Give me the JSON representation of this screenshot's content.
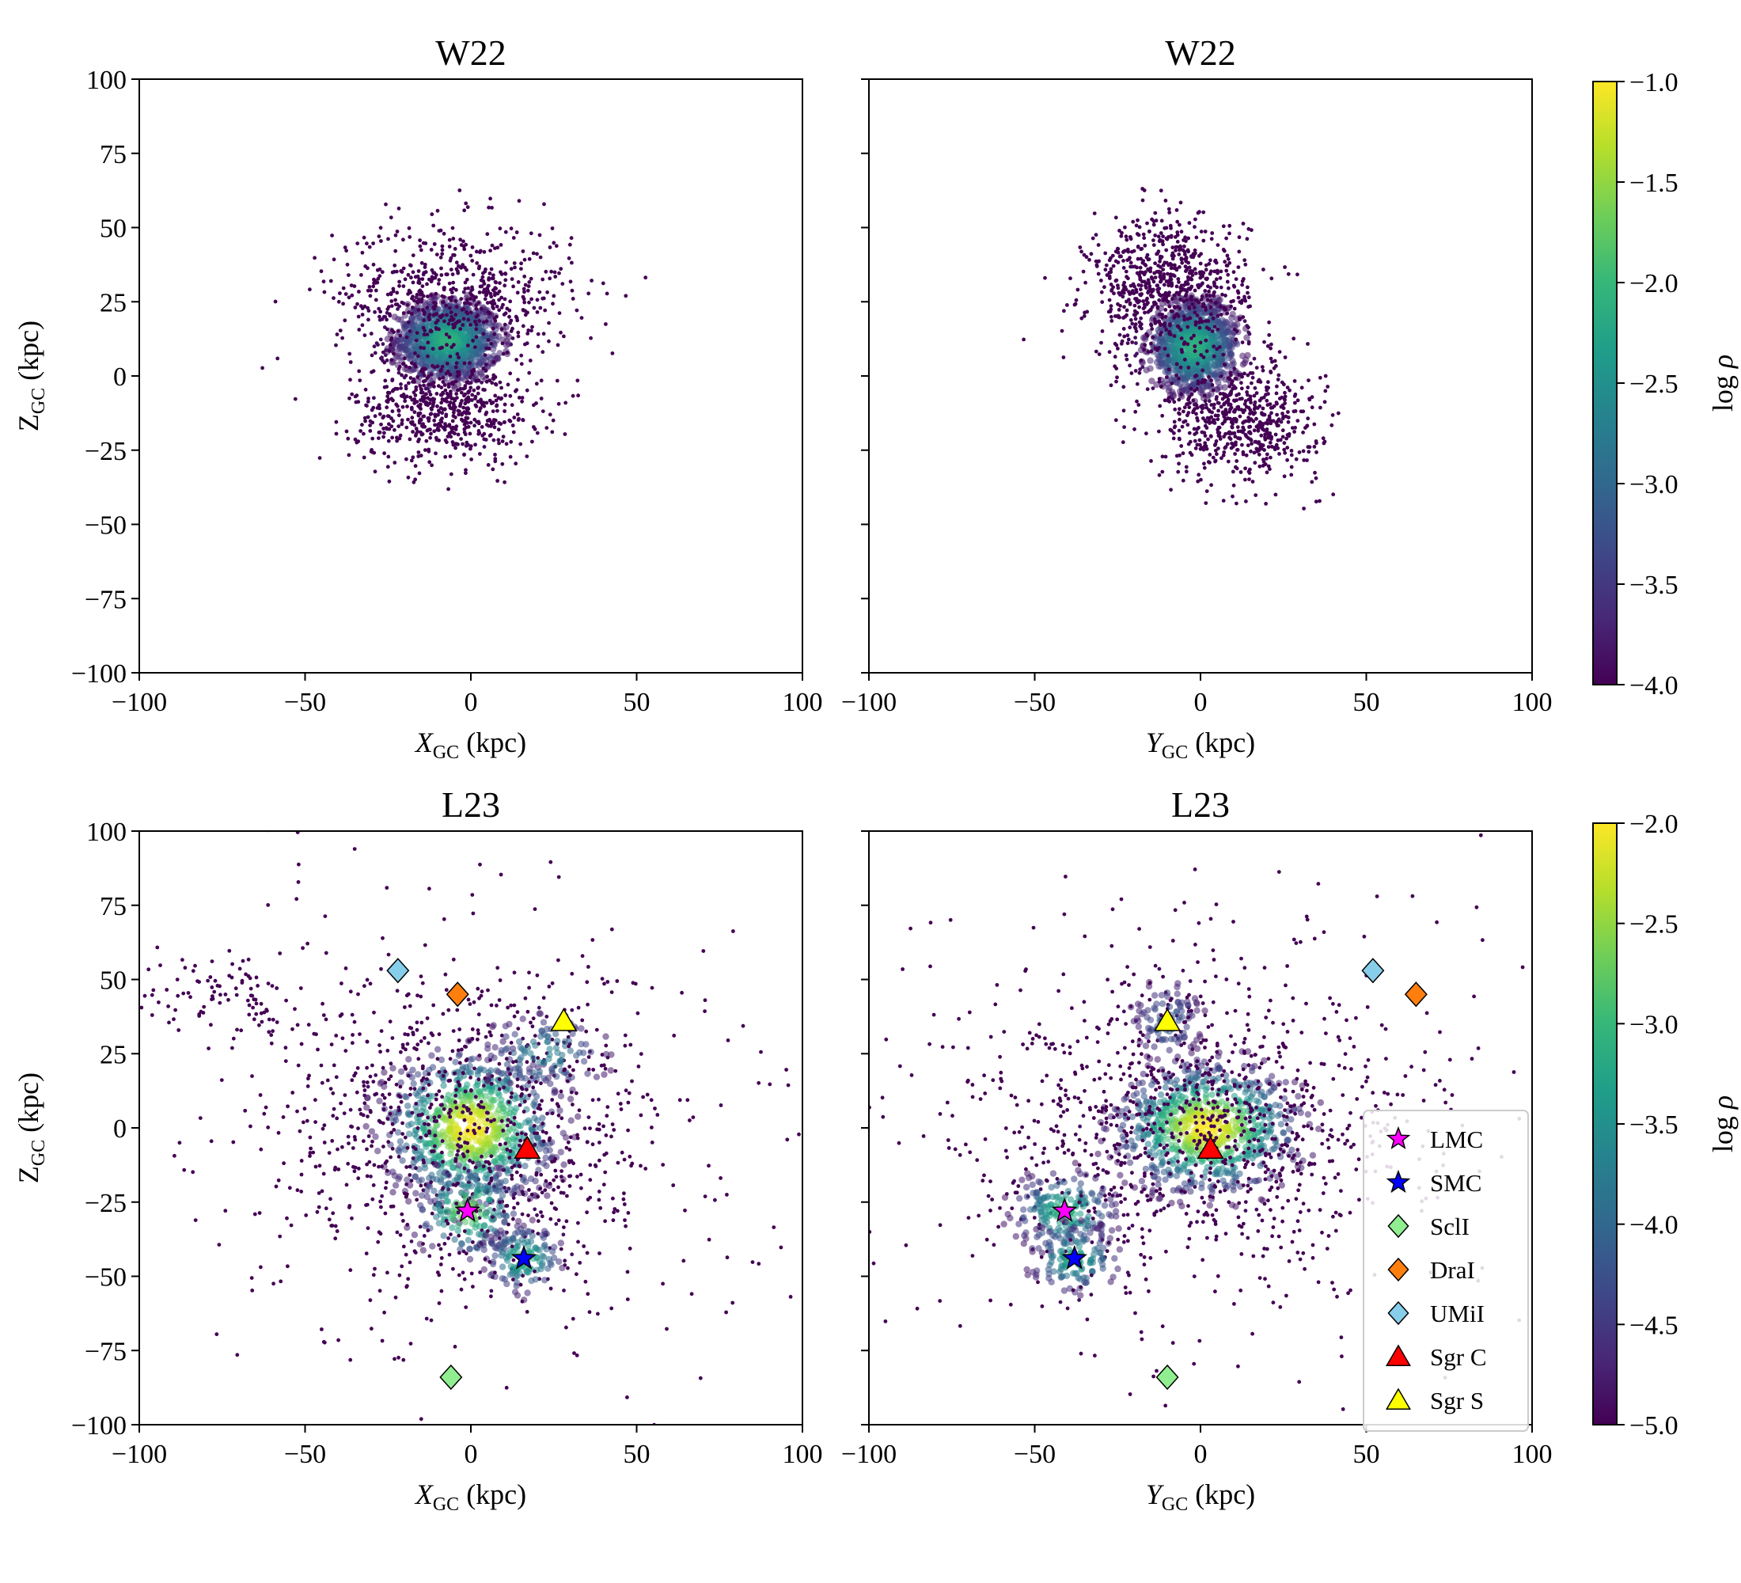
{
  "figure": {
    "colormap": [
      "#440154",
      "#482878",
      "#3e4989",
      "#31688e",
      "#26828e",
      "#1f9e89",
      "#35b779",
      "#6ece58",
      "#b5de2b",
      "#fde725"
    ]
  },
  "chart_data": [
    {
      "type": "scatter",
      "panel": "top-left",
      "title": "W22",
      "xlabel": "X",
      "xlabel_sub": "GC",
      "xlabel_unit": " (kpc)",
      "ylabel": "Z",
      "ylabel_sub": "GC",
      "ylabel_unit": " (kpc)",
      "xlim": [
        -100,
        100
      ],
      "ylim": [
        -100,
        100
      ],
      "xticks": [
        "−100",
        "−50",
        "0",
        "50",
        "100"
      ],
      "yticks": [
        "100",
        "75",
        "50",
        "25",
        "0",
        "−25",
        "−50",
        "−75",
        "−100"
      ],
      "show_yticklabels": true,
      "density": "log_rho",
      "colorbar_range": [
        -4.0,
        -1.0
      ],
      "components": [
        {
          "cx": -7,
          "cy": 12,
          "sx": 8,
          "sy": 7,
          "weight": 0.5,
          "peak": 0.65
        },
        {
          "cx": -5,
          "cy": 28,
          "sx": 18,
          "sy": 12,
          "weight": 0.25,
          "peak": 0.0
        },
        {
          "cx": -8,
          "cy": -12,
          "sx": 14,
          "sy": 9,
          "weight": 0.25,
          "peak": 0.0
        }
      ],
      "markers": []
    },
    {
      "type": "scatter",
      "panel": "top-right",
      "title": "W22",
      "xlabel": "Y",
      "xlabel_sub": "GC",
      "xlabel_unit": " (kpc)",
      "ylabel": "",
      "ylabel_sub": "",
      "ylabel_unit": "",
      "xlim": [
        -100,
        100
      ],
      "ylim": [
        -100,
        100
      ],
      "xticks": [
        "−100",
        "−50",
        "0",
        "50",
        "100"
      ],
      "yticks": [
        "",
        "",
        "",
        "",
        "",
        "",
        "",
        "",
        ""
      ],
      "show_yticklabels": false,
      "density": "log_rho",
      "colorbar_range": [
        -4.0,
        -1.0
      ],
      "components": [
        {
          "cx": -2,
          "cy": 10,
          "sx": 7,
          "sy": 8,
          "weight": 0.45,
          "peak": 0.65
        },
        {
          "cx": -10,
          "cy": 30,
          "sx": 12,
          "sy": 12,
          "weight": 0.3,
          "peak": 0.0
        },
        {
          "cx": 12,
          "cy": -15,
          "sx": 12,
          "sy": 10,
          "weight": 0.25,
          "peak": 0.0
        }
      ],
      "markers": []
    },
    {
      "type": "scatter",
      "panel": "bottom-left",
      "title": "L23",
      "xlabel": "X",
      "xlabel_sub": "GC",
      "xlabel_unit": " (kpc)",
      "ylabel": "Z",
      "ylabel_sub": "GC",
      "ylabel_unit": " (kpc)",
      "xlim": [
        -100,
        100
      ],
      "ylim": [
        -100,
        100
      ],
      "xticks": [
        "−100",
        "−50",
        "0",
        "50",
        "100"
      ],
      "yticks": [
        "100",
        "75",
        "50",
        "25",
        "0",
        "−25",
        "−50",
        "−75",
        "−100"
      ],
      "show_yticklabels": true,
      "density": "log_rho",
      "colorbar_range": [
        -5.0,
        -2.0
      ],
      "components": [
        {
          "cx": 0,
          "cy": 0,
          "sx": 13,
          "sy": 13,
          "weight": 0.35,
          "peak": 1.0
        },
        {
          "cx": 0,
          "cy": 0,
          "sx": 30,
          "sy": 28,
          "weight": 0.3,
          "peak": 0.0
        },
        {
          "cx": -1,
          "cy": -28,
          "sx": 8,
          "sy": 8,
          "weight": 0.08,
          "peak": 0.8
        },
        {
          "cx": 16,
          "cy": -44,
          "sx": 6,
          "sy": 6,
          "weight": 0.06,
          "peak": 0.65
        },
        {
          "cx": 22,
          "cy": 25,
          "sx": 10,
          "sy": 7,
          "weight": 0.05,
          "peak": 0.45
        },
        {
          "cx": -75,
          "cy": 45,
          "sx": 12,
          "sy": 8,
          "weight": 0.04,
          "peak": 0.0
        },
        {
          "cx": 0,
          "cy": 0,
          "sx": 45,
          "sy": 45,
          "weight": 0.12,
          "peak": 0.0
        }
      ],
      "markers": [
        {
          "label": "LMC",
          "symbol": "star",
          "color": "#ff00ff",
          "x": -1,
          "y": -28
        },
        {
          "label": "SMC",
          "symbol": "star",
          "color": "#0000ff",
          "x": 16,
          "y": -44
        },
        {
          "label": "SclI",
          "symbol": "diamond",
          "color": "#90ee90",
          "x": -6,
          "y": -84
        },
        {
          "label": "DraI",
          "symbol": "diamond",
          "color": "#ff7f0e",
          "x": -4,
          "y": 45
        },
        {
          "label": "UMiI",
          "symbol": "diamond",
          "color": "#87ceeb",
          "x": -22,
          "y": 53
        },
        {
          "label": "Sgr C",
          "symbol": "triangle",
          "color": "#ff0000",
          "x": 17,
          "y": -7
        },
        {
          "label": "Sgr S",
          "symbol": "triangle",
          "color": "#ffff00",
          "x": 28,
          "y": 36
        }
      ]
    },
    {
      "type": "scatter",
      "panel": "bottom-right",
      "title": "L23",
      "xlabel": "Y",
      "xlabel_sub": "GC",
      "xlabel_unit": " (kpc)",
      "ylabel": "",
      "ylabel_sub": "",
      "ylabel_unit": "",
      "xlim": [
        -100,
        100
      ],
      "ylim": [
        -100,
        100
      ],
      "xticks": [
        "−100",
        "−50",
        "0",
        "50",
        "100"
      ],
      "yticks": [
        "",
        "",
        "",
        "",
        "",
        "",
        "",
        "",
        ""
      ],
      "show_yticklabels": false,
      "density": "log_rho",
      "colorbar_range": [
        -5.0,
        -2.0
      ],
      "components": [
        {
          "cx": 2,
          "cy": 0,
          "sx": 14,
          "sy": 11,
          "weight": 0.35,
          "peak": 1.0
        },
        {
          "cx": 0,
          "cy": 0,
          "sx": 35,
          "sy": 22,
          "weight": 0.3,
          "peak": 0.0
        },
        {
          "cx": -41,
          "cy": -28,
          "sx": 8,
          "sy": 7,
          "weight": 0.08,
          "peak": 0.65
        },
        {
          "cx": -38,
          "cy": -44,
          "sx": 7,
          "sy": 6,
          "weight": 0.06,
          "peak": 0.6
        },
        {
          "cx": -10,
          "cy": 36,
          "sx": 6,
          "sy": 8,
          "weight": 0.05,
          "peak": 0.3
        },
        {
          "cx": 0,
          "cy": 0,
          "sx": 45,
          "sy": 45,
          "weight": 0.16,
          "peak": 0.0
        }
      ],
      "markers": [
        {
          "label": "LMC",
          "symbol": "star",
          "color": "#ff00ff",
          "x": -41,
          "y": -28
        },
        {
          "label": "SMC",
          "symbol": "star",
          "color": "#0000ff",
          "x": -38,
          "y": -44
        },
        {
          "label": "SclI",
          "symbol": "diamond",
          "color": "#90ee90",
          "x": -10,
          "y": -84
        },
        {
          "label": "DraI",
          "symbol": "diamond",
          "color": "#ff7f0e",
          "x": 65,
          "y": 45
        },
        {
          "label": "UMiI",
          "symbol": "diamond",
          "color": "#87ceeb",
          "x": 52,
          "y": 53
        },
        {
          "label": "Sgr C",
          "symbol": "triangle",
          "color": "#ff0000",
          "x": 3,
          "y": -7
        },
        {
          "label": "Sgr S",
          "symbol": "triangle",
          "color": "#ffff00",
          "x": -10,
          "y": 36
        }
      ],
      "legend": {
        "placement": "right",
        "entries": [
          {
            "label": "LMC",
            "symbol": "star",
            "color": "#ff00ff"
          },
          {
            "label": "SMC",
            "symbol": "star",
            "color": "#0000ff"
          },
          {
            "label": "SclI",
            "symbol": "diamond",
            "color": "#90ee90"
          },
          {
            "label": "DraI",
            "symbol": "diamond",
            "color": "#ff7f0e"
          },
          {
            "label": "UMiI",
            "symbol": "diamond",
            "color": "#87ceeb"
          },
          {
            "label": "Sgr C",
            "symbol": "triangle",
            "color": "#ff0000"
          },
          {
            "label": "Sgr S",
            "symbol": "triangle",
            "color": "#ffff00"
          }
        ]
      }
    }
  ],
  "colorbars": [
    {
      "row": "top",
      "label": "log",
      "label_symbol": "ρ",
      "range": [
        -4.0,
        -1.0
      ],
      "ticks": [
        "−1.0",
        "−1.5",
        "−2.0",
        "−2.5",
        "−3.0",
        "−3.5",
        "−4.0"
      ]
    },
    {
      "row": "bottom",
      "label": "log",
      "label_symbol": "ρ",
      "range": [
        -5.0,
        -2.0
      ],
      "ticks": [
        "−2.0",
        "−2.5",
        "−3.0",
        "−3.5",
        "−4.0",
        "−4.5",
        "−5.0"
      ]
    }
  ]
}
